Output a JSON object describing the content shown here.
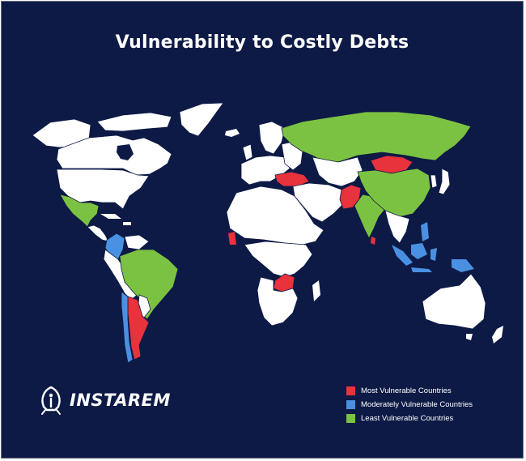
{
  "title": "Vulnerability to Costly Debts",
  "brand": {
    "name": "INSTAREM",
    "logo_icon": "instarem-rocket-logo-icon"
  },
  "colors": {
    "background": "#0d1a45",
    "land": "#ffffff",
    "border": "#0d1a45",
    "most": "#e8323c",
    "moderate": "#4a90e2",
    "least": "#7cc242"
  },
  "legend": [
    {
      "label": "Most Vulnerable Countries",
      "category": "most"
    },
    {
      "label": "Moderately Vulnerable Countries",
      "category": "moderate"
    },
    {
      "label": "Least Vulnerable Countries",
      "category": "least"
    }
  ]
}
